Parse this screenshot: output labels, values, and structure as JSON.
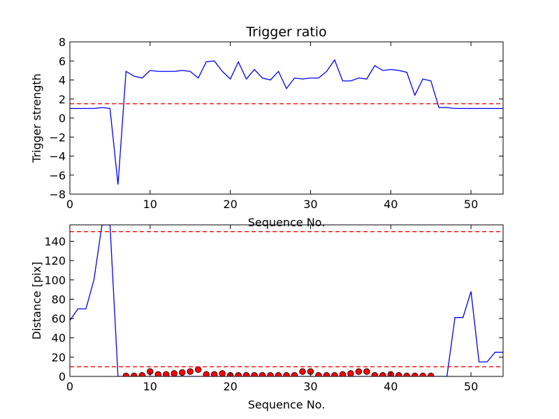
{
  "chart_data": [
    {
      "type": "line",
      "title": "Trigger ratio",
      "xlabel": "Sequence No.",
      "ylabel": "Trigger strength",
      "xlim": [
        0,
        54
      ],
      "ylim": [
        -8,
        8
      ],
      "xticks": [
        0,
        10,
        20,
        30,
        40,
        50
      ],
      "yticks": [
        -8,
        -6,
        -4,
        -2,
        0,
        2,
        4,
        6,
        8
      ],
      "grid": false,
      "series": [
        {
          "color": "#0000ff",
          "style": "line",
          "x": [
            0,
            1,
            2,
            3,
            4,
            5,
            6,
            7,
            8,
            9,
            10,
            11,
            12,
            13,
            14,
            15,
            16,
            17,
            18,
            19,
            20,
            21,
            22,
            23,
            24,
            25,
            26,
            27,
            28,
            29,
            30,
            31,
            32,
            33,
            34,
            35,
            36,
            37,
            38,
            39,
            40,
            41,
            42,
            43,
            44,
            45,
            46,
            47,
            48,
            49,
            50,
            51,
            52,
            53,
            54
          ],
          "y": [
            1,
            1,
            1,
            1,
            1.1,
            1,
            -7,
            4.9,
            4.4,
            4.2,
            5,
            4.9,
            4.9,
            4.9,
            5,
            4.9,
            4.2,
            5.9,
            6,
            4.9,
            4.1,
            5.9,
            4.1,
            5.1,
            4.2,
            4,
            4.9,
            3.1,
            4.2,
            4.1,
            4.2,
            4.2,
            4.9,
            6.1,
            3.9,
            3.9,
            4.2,
            4.1,
            5.5,
            5,
            5.1,
            5,
            4.8,
            2.4,
            4.1,
            3.9,
            1.1,
            1.1,
            1,
            1,
            1,
            1,
            1,
            1,
            1
          ]
        },
        {
          "color": "#ff0000",
          "style": "dashed",
          "x": [
            0,
            54
          ],
          "y": [
            1.5,
            1.5
          ]
        }
      ]
    },
    {
      "type": "line",
      "title": "",
      "xlabel": "Sequence No.",
      "ylabel": "Distance [pix]",
      "xlim": [
        0,
        54
      ],
      "ylim": [
        0,
        157
      ],
      "xticks": [
        0,
        10,
        20,
        30,
        40,
        50
      ],
      "yticks": [
        0,
        20,
        40,
        60,
        80,
        100,
        120,
        140
      ],
      "grid": false,
      "series": [
        {
          "color": "#0000ff",
          "style": "line",
          "x": [
            0,
            1,
            2,
            3,
            4,
            5,
            6,
            7,
            47,
            48,
            49,
            50,
            51,
            52,
            53,
            54
          ],
          "y": [
            58,
            70,
            70,
            100,
            157,
            157,
            0,
            0,
            0,
            61,
            61,
            88,
            15,
            15,
            25,
            25
          ]
        },
        {
          "color": "#ff0000",
          "style": "markers",
          "x": [
            7,
            8,
            9,
            10,
            11,
            12,
            13,
            14,
            15,
            16,
            17,
            18,
            19,
            20,
            21,
            22,
            23,
            24,
            25,
            26,
            27,
            28,
            29,
            30,
            31,
            32,
            33,
            34,
            35,
            36,
            37,
            38,
            39,
            40,
            41,
            42,
            43,
            44,
            45
          ],
          "y": [
            0.5,
            0.5,
            1,
            5,
            2,
            2,
            3,
            4,
            5,
            7,
            2,
            2,
            3,
            1,
            1,
            1,
            1,
            1,
            1,
            1,
            1,
            1,
            5,
            5,
            1,
            1,
            1,
            2,
            3,
            5,
            5,
            1,
            1,
            2,
            1,
            0.5,
            0.5,
            0.5,
            0.5
          ]
        },
        {
          "color": "#ff0000",
          "style": "dashed",
          "x": [
            0,
            54
          ],
          "y": [
            150,
            150
          ]
        },
        {
          "color": "#ff0000",
          "style": "dashed",
          "x": [
            0,
            54
          ],
          "y": [
            10,
            10
          ]
        }
      ]
    }
  ]
}
